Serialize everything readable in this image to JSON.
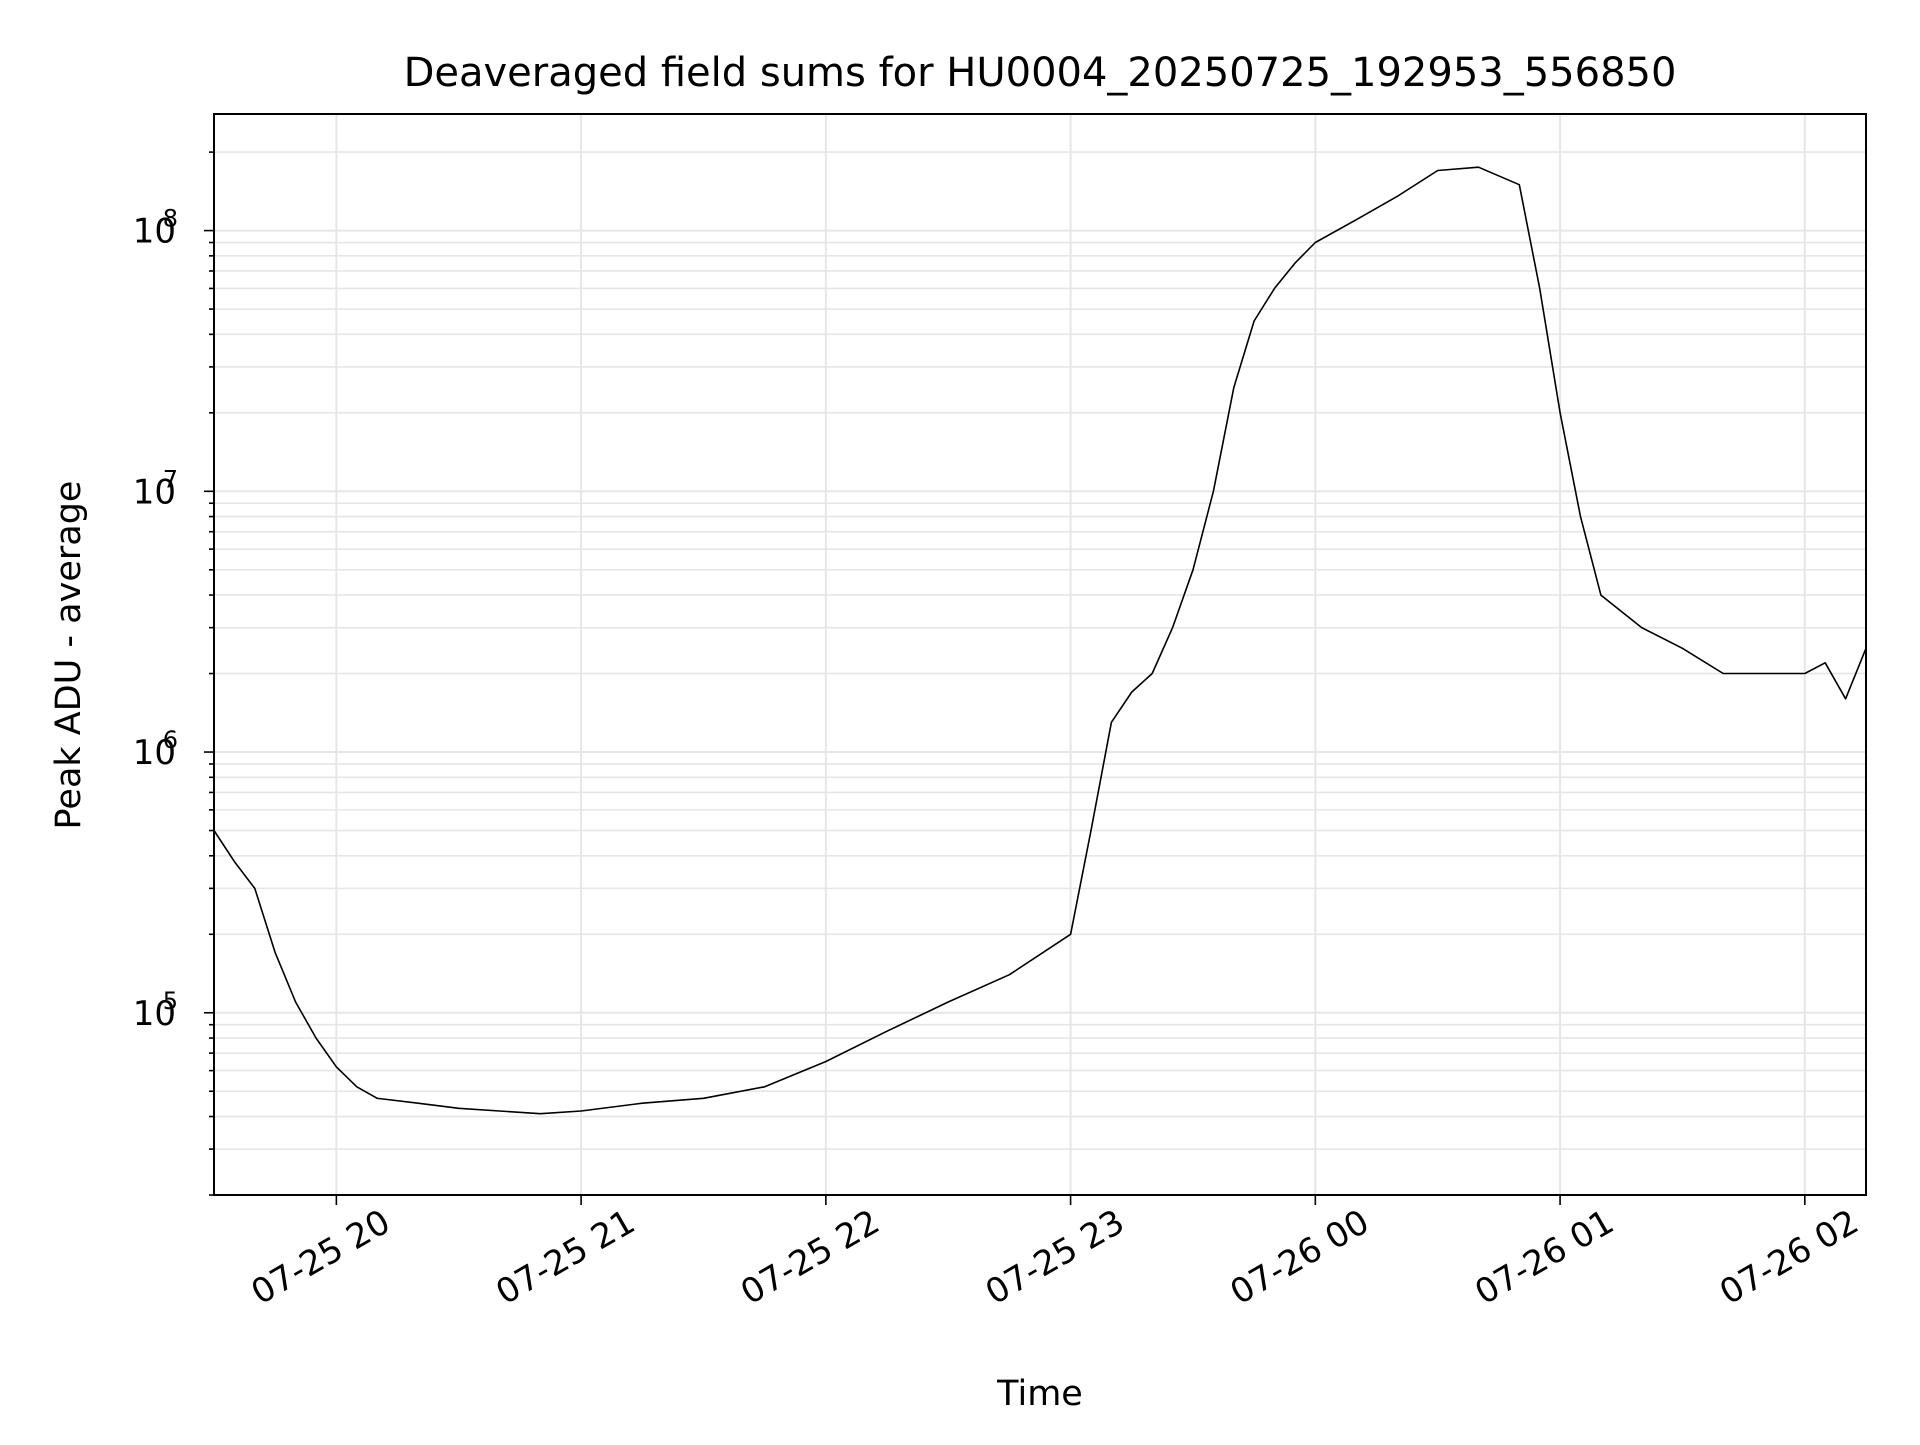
{
  "chart_data": {
    "type": "line",
    "title": "Deaveraged field sums for HU0004_20250725_192953_556850",
    "xlabel": "Time",
    "ylabel": "Peak ADU - average",
    "y_scale": "log",
    "ylim": [
      20000,
      280000000
    ],
    "xlim": [
      "2025-07-25 19:30",
      "2025-07-26 02:15"
    ],
    "grid": true,
    "line_color": "#000000",
    "grid_color": "#e6e6e6",
    "x_ticks": [
      {
        "value": "2025-07-25 20:00",
        "label": "07-25 20"
      },
      {
        "value": "2025-07-25 21:00",
        "label": "07-25 21"
      },
      {
        "value": "2025-07-25 22:00",
        "label": "07-25 22"
      },
      {
        "value": "2025-07-25 23:00",
        "label": "07-25 23"
      },
      {
        "value": "2025-07-26 00:00",
        "label": "07-26 00"
      },
      {
        "value": "2025-07-26 01:00",
        "label": "07-26 01"
      },
      {
        "value": "2025-07-26 02:00",
        "label": "07-26 02"
      }
    ],
    "y_ticks": [
      {
        "value": 100000,
        "base": "10",
        "exp": "5"
      },
      {
        "value": 1000000,
        "base": "10",
        "exp": "6"
      },
      {
        "value": 10000000,
        "base": "10",
        "exp": "7"
      },
      {
        "value": 100000000,
        "base": "10",
        "exp": "8"
      }
    ],
    "series": [
      {
        "points": [
          [
            "2025-07-25 19:30",
            500000
          ],
          [
            "2025-07-25 19:35",
            380000
          ],
          [
            "2025-07-25 19:40",
            300000
          ],
          [
            "2025-07-25 19:45",
            170000
          ],
          [
            "2025-07-25 19:50",
            110000
          ],
          [
            "2025-07-25 19:55",
            80000
          ],
          [
            "2025-07-25 20:00",
            62000
          ],
          [
            "2025-07-25 20:05",
            52000
          ],
          [
            "2025-07-25 20:10",
            47000
          ],
          [
            "2025-07-25 20:20",
            45000
          ],
          [
            "2025-07-25 20:30",
            43000
          ],
          [
            "2025-07-25 20:40",
            42000
          ],
          [
            "2025-07-25 20:50",
            41000
          ],
          [
            "2025-07-25 21:00",
            42000
          ],
          [
            "2025-07-25 21:15",
            45000
          ],
          [
            "2025-07-25 21:30",
            47000
          ],
          [
            "2025-07-25 21:45",
            52000
          ],
          [
            "2025-07-25 22:00",
            65000
          ],
          [
            "2025-07-25 22:15",
            85000
          ],
          [
            "2025-07-25 22:30",
            110000
          ],
          [
            "2025-07-25 22:45",
            140000
          ],
          [
            "2025-07-25 23:00",
            200000
          ],
          [
            "2025-07-25 23:05",
            500000
          ],
          [
            "2025-07-25 23:10",
            1300000
          ],
          [
            "2025-07-25 23:15",
            1700000
          ],
          [
            "2025-07-25 23:20",
            2000000
          ],
          [
            "2025-07-25 23:25",
            3000000
          ],
          [
            "2025-07-25 23:30",
            5000000
          ],
          [
            "2025-07-25 23:35",
            10000000
          ],
          [
            "2025-07-25 23:40",
            25000000
          ],
          [
            "2025-07-25 23:45",
            45000000
          ],
          [
            "2025-07-25 23:50",
            60000000
          ],
          [
            "2025-07-25 23:55",
            75000000
          ],
          [
            "2025-07-26 00:00",
            90000000
          ],
          [
            "2025-07-26 00:10",
            110000000
          ],
          [
            "2025-07-26 00:20",
            135000000
          ],
          [
            "2025-07-26 00:30",
            170000000
          ],
          [
            "2025-07-26 00:40",
            175000000
          ],
          [
            "2025-07-26 00:50",
            150000000
          ],
          [
            "2025-07-26 00:55",
            60000000
          ],
          [
            "2025-07-26 01:00",
            20000000
          ],
          [
            "2025-07-26 01:05",
            8000000
          ],
          [
            "2025-07-26 01:10",
            4000000
          ],
          [
            "2025-07-26 01:20",
            3000000
          ],
          [
            "2025-07-26 01:30",
            2500000
          ],
          [
            "2025-07-26 01:40",
            2000000
          ],
          [
            "2025-07-26 01:50",
            2000000
          ],
          [
            "2025-07-26 02:00",
            2000000
          ],
          [
            "2025-07-26 02:05",
            2200000
          ],
          [
            "2025-07-26 02:10",
            1600000
          ],
          [
            "2025-07-26 02:15",
            2500000
          ]
        ]
      }
    ]
  }
}
